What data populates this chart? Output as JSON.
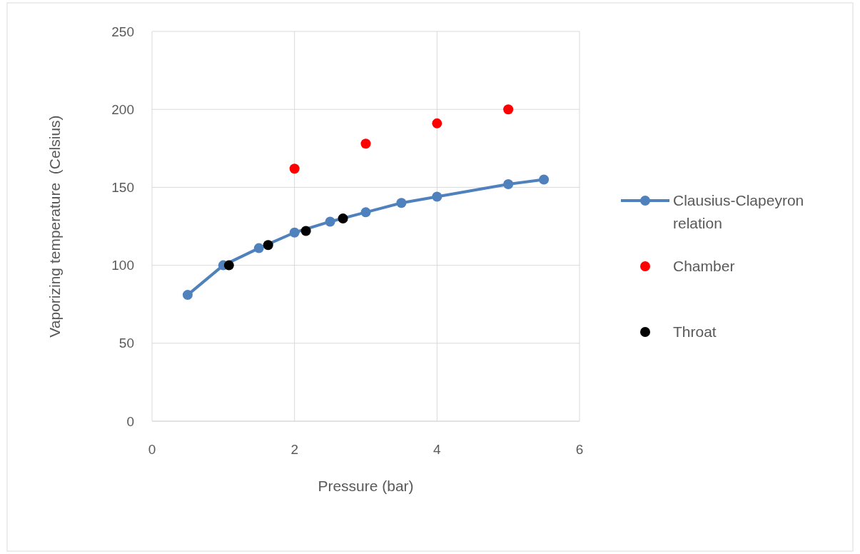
{
  "chart_data": {
    "type": "line",
    "xlabel": "Pressure (bar)",
    "ylabel": "Vaporizing temperature  (Celsius)",
    "xlim": [
      0,
      6
    ],
    "xticks": [
      0,
      2,
      4,
      6
    ],
    "ylim": [
      0,
      250
    ],
    "yticks": [
      0,
      50,
      100,
      150,
      200,
      250
    ],
    "grid": true,
    "legend": "right",
    "marker": "circle",
    "series": [
      {
        "name": "Clausius-Clapeyron relation",
        "color": "#4f81bd",
        "x": [
          0.5,
          1,
          1.5,
          2,
          2.5,
          3,
          3.5,
          4,
          5,
          5.5
        ],
        "values": [
          81,
          100,
          111,
          121,
          128,
          134,
          140,
          144,
          152,
          155
        ]
      },
      {
        "name": "Chamber",
        "color": "#ff0000",
        "type": "scatter",
        "x": [
          2,
          3,
          4,
          5
        ],
        "values": [
          162,
          178,
          191,
          200
        ]
      },
      {
        "name": "Throat",
        "color": "#000000",
        "type": "scatter",
        "x": [
          1.08,
          1.63,
          2.16,
          2.68
        ],
        "values": [
          100,
          113,
          122,
          130
        ]
      }
    ]
  }
}
